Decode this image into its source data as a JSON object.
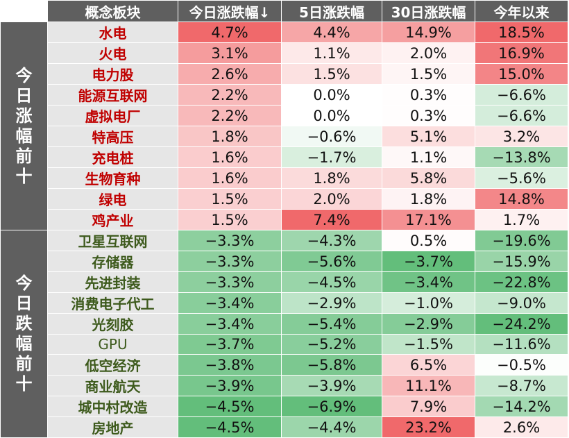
{
  "header": {
    "columns": [
      "概念板块",
      "今日涨跌幅↓",
      "5日涨跌幅",
      "30日涨跌幅",
      "今年以来"
    ]
  },
  "groups": [
    {
      "label": "今日涨幅前十",
      "direction": "gain",
      "rows": [
        {
          "name": "水电",
          "values": [
            "4.7%",
            "4.4%",
            "14.9%",
            "18.5%"
          ]
        },
        {
          "name": "火电",
          "values": [
            "3.1%",
            "1.1%",
            "2.0%",
            "16.9%"
          ]
        },
        {
          "name": "电力股",
          "values": [
            "2.6%",
            "1.5%",
            "1.5%",
            "15.0%"
          ]
        },
        {
          "name": "能源互联网",
          "values": [
            "2.2%",
            "0.0%",
            "0.3%",
            "−6.6%"
          ]
        },
        {
          "name": "虚拟电厂",
          "values": [
            "2.2%",
            "0.0%",
            "0.3%",
            "−6.6%"
          ]
        },
        {
          "name": "特高压",
          "values": [
            "1.8%",
            "−0.6%",
            "5.1%",
            "3.2%"
          ]
        },
        {
          "name": "充电桩",
          "values": [
            "1.6%",
            "−1.7%",
            "1.1%",
            "−13.8%"
          ]
        },
        {
          "name": "生物育种",
          "values": [
            "1.6%",
            "1.8%",
            "5.8%",
            "−5.6%"
          ]
        },
        {
          "name": "绿电",
          "values": [
            "1.5%",
            "2.0%",
            "1.8%",
            "14.8%"
          ]
        },
        {
          "name": "鸡产业",
          "values": [
            "1.5%",
            "7.4%",
            "17.1%",
            "1.7%"
          ]
        }
      ]
    },
    {
      "label": "今日跌幅前十",
      "direction": "loss",
      "rows": [
        {
          "name": "卫星互联网",
          "values": [
            "−3.3%",
            "−4.3%",
            "0.5%",
            "−19.6%"
          ]
        },
        {
          "name": "存储器",
          "values": [
            "−3.3%",
            "−5.6%",
            "−3.7%",
            "−15.9%"
          ]
        },
        {
          "name": "先进封装",
          "values": [
            "−3.3%",
            "−4.5%",
            "−3.4%",
            "−22.8%"
          ]
        },
        {
          "name": "消费电子代工",
          "values": [
            "−3.4%",
            "−2.9%",
            "−1.0%",
            "−9.0%"
          ]
        },
        {
          "name": "光刻胶",
          "values": [
            "−3.4%",
            "−5.4%",
            "−2.9%",
            "−24.2%"
          ]
        },
        {
          "name": "GPU",
          "values": [
            "−3.7%",
            "−5.2%",
            "−1.5%",
            "−11.6%"
          ]
        },
        {
          "name": "低空经济",
          "values": [
            "−3.8%",
            "−5.8%",
            "6.5%",
            "−0.5%"
          ]
        },
        {
          "name": "商业航天",
          "values": [
            "−3.9%",
            "−3.9%",
            "11.1%",
            "−8.7%"
          ]
        },
        {
          "name": "城中村改造",
          "values": [
            "−4.5%",
            "−6.9%",
            "7.9%",
            "−14.2%"
          ]
        },
        {
          "name": "房地产",
          "values": [
            "−4.5%",
            "−4.4%",
            "23.2%",
            "2.6%"
          ]
        }
      ]
    }
  ],
  "colors": {
    "header_bg": "#5f5f5f",
    "header_text": "#ffffff",
    "name_bg": "#e6e6e6",
    "gain_name_text": "#c00000",
    "loss_name_text": "#3d5a1c",
    "positive_max": "#f0696b",
    "negative_max": "#63be7b",
    "neutral": "#ffffff"
  },
  "chart_data": {
    "type": "table",
    "columns": [
      "概念板块",
      "今日涨跌幅↓",
      "5日涨跌幅",
      "30日涨跌幅",
      "今年以来"
    ],
    "row_groups": [
      "今日涨幅前十",
      "今日跌幅前十"
    ],
    "rows": [
      [
        "水电",
        4.7,
        4.4,
        14.9,
        18.5
      ],
      [
        "火电",
        3.1,
        1.1,
        2.0,
        16.9
      ],
      [
        "电力股",
        2.6,
        1.5,
        1.5,
        15.0
      ],
      [
        "能源互联网",
        2.2,
        0.0,
        0.3,
        -6.6
      ],
      [
        "虚拟电厂",
        2.2,
        0.0,
        0.3,
        -6.6
      ],
      [
        "特高压",
        1.8,
        -0.6,
        5.1,
        3.2
      ],
      [
        "充电桩",
        1.6,
        -1.7,
        1.1,
        -13.8
      ],
      [
        "生物育种",
        1.6,
        1.8,
        5.8,
        -5.6
      ],
      [
        "绿电",
        1.5,
        2.0,
        1.8,
        14.8
      ],
      [
        "鸡产业",
        1.5,
        7.4,
        17.1,
        1.7
      ],
      [
        "卫星互联网",
        -3.3,
        -4.3,
        0.5,
        -19.6
      ],
      [
        "存储器",
        -3.3,
        -5.6,
        -3.7,
        -15.9
      ],
      [
        "先进封装",
        -3.3,
        -4.5,
        -3.4,
        -22.8
      ],
      [
        "消费电子代工",
        -3.4,
        -2.9,
        -1.0,
        -9.0
      ],
      [
        "光刻胶",
        -3.4,
        -5.4,
        -2.9,
        -24.2
      ],
      [
        "GPU",
        -3.7,
        -5.2,
        -1.5,
        -11.6
      ],
      [
        "低空经济",
        -3.8,
        -5.8,
        6.5,
        -0.5
      ],
      [
        "商业航天",
        -3.9,
        -3.9,
        11.1,
        -8.7
      ],
      [
        "城中村改造",
        -4.5,
        -6.9,
        7.9,
        -14.2
      ],
      [
        "房地产",
        -4.5,
        -4.4,
        23.2,
        2.6
      ]
    ]
  }
}
